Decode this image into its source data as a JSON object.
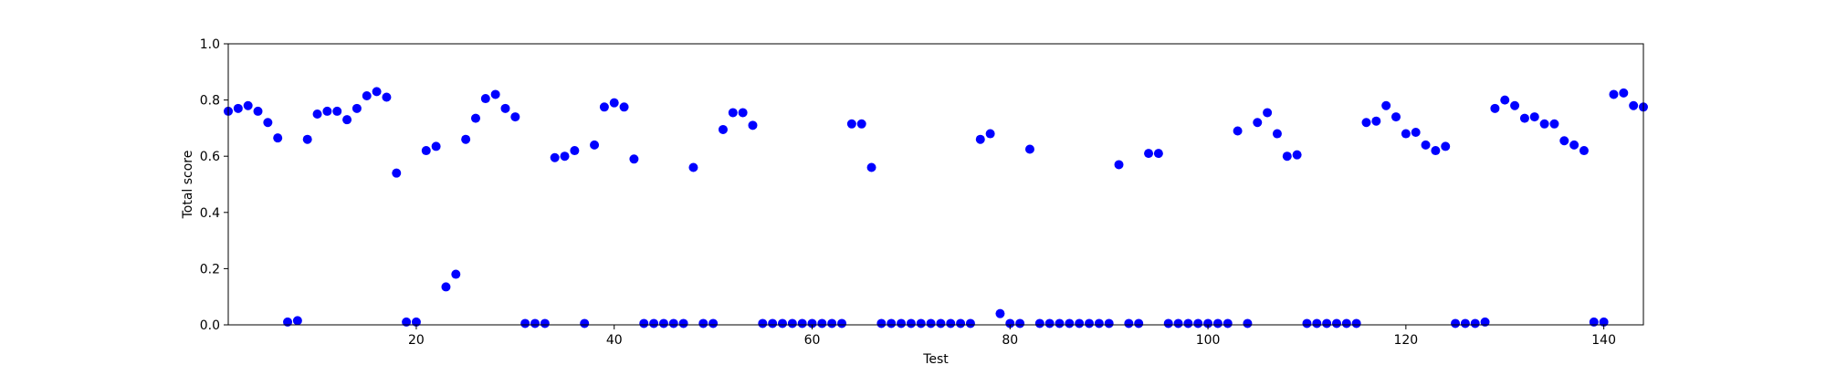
{
  "chart_data": {
    "type": "scatter",
    "title": "",
    "xlabel": "Test",
    "ylabel": "Total score",
    "xlim": [
      1,
      144
    ],
    "ylim": [
      0.0,
      1.0
    ],
    "xticks": [
      20,
      40,
      60,
      80,
      100,
      120,
      140
    ],
    "yticks": [
      0.0,
      0.2,
      0.4,
      0.6,
      0.8,
      1.0
    ],
    "ytick_labels": [
      "0.0",
      "0.2",
      "0.4",
      "0.6",
      "0.8",
      "1.0"
    ],
    "grid": false,
    "legend": "none",
    "marker_color": "#0000ff",
    "series": [
      {
        "x": [
          1,
          2,
          3,
          4,
          5,
          6,
          7,
          8,
          9,
          10,
          11,
          12,
          13,
          14,
          15,
          16,
          17,
          18,
          19,
          20,
          21,
          22,
          23,
          24,
          25,
          26,
          27,
          28,
          29,
          30,
          31,
          32,
          33,
          34,
          35,
          36,
          37,
          38,
          39,
          40,
          41,
          42,
          43,
          44,
          45,
          46,
          47,
          48,
          49,
          50,
          51,
          52,
          53,
          54,
          55,
          56,
          57,
          58,
          59,
          60,
          61,
          62,
          63,
          64,
          65,
          66,
          67,
          68,
          69,
          70,
          71,
          72,
          73,
          74,
          75,
          76,
          77,
          78,
          79,
          80,
          81,
          82,
          83,
          84,
          85,
          86,
          87,
          88,
          89,
          90,
          91,
          92,
          93,
          94,
          95,
          96,
          97,
          98,
          99,
          100,
          101,
          102,
          103,
          104,
          105,
          106,
          107,
          108,
          109,
          110,
          111,
          112,
          113,
          114,
          115,
          116,
          117,
          118,
          119,
          120,
          121,
          122,
          123,
          124,
          125,
          126,
          127,
          128,
          129,
          130,
          131,
          132,
          133,
          134,
          135,
          136,
          137,
          138,
          139,
          140,
          141,
          142,
          143,
          144
        ],
        "y": [
          0.76,
          0.77,
          0.78,
          0.76,
          0.72,
          0.665,
          0.01,
          0.015,
          0.66,
          0.75,
          0.76,
          0.76,
          0.73,
          0.77,
          0.815,
          0.83,
          0.81,
          0.54,
          0.01,
          0.01,
          0.62,
          0.635,
          0.135,
          0.18,
          0.66,
          0.735,
          0.805,
          0.82,
          0.77,
          0.74,
          0.005,
          0.005,
          0.005,
          0.595,
          0.6,
          0.62,
          0.005,
          0.64,
          0.775,
          0.79,
          0.775,
          0.59,
          0.005,
          0.005,
          0.005,
          0.005,
          0.005,
          0.56,
          0.005,
          0.005,
          0.695,
          0.755,
          0.755,
          0.71,
          0.005,
          0.005,
          0.005,
          0.005,
          0.005,
          0.005,
          0.005,
          0.005,
          0.005,
          0.715,
          0.715,
          0.56,
          0.005,
          0.005,
          0.005,
          0.005,
          0.005,
          0.005,
          0.005,
          0.005,
          0.005,
          0.005,
          0.66,
          0.68,
          0.04,
          0.005,
          0.005,
          0.625,
          0.005,
          0.005,
          0.005,
          0.005,
          0.005,
          0.005,
          0.005,
          0.005,
          0.57,
          0.005,
          0.005,
          0.61,
          0.61,
          0.005,
          0.005,
          0.005,
          0.005,
          0.005,
          0.005,
          0.005,
          0.69,
          0.005,
          0.72,
          0.755,
          0.68,
          0.6,
          0.605,
          0.005,
          0.005,
          0.005,
          0.005,
          0.005,
          0.005,
          0.72,
          0.725,
          0.78,
          0.74,
          0.68,
          0.685,
          0.64,
          0.62,
          0.635,
          0.005,
          0.005,
          0.005,
          0.01,
          0.77,
          0.8,
          0.78,
          0.735,
          0.74,
          0.715,
          0.715,
          0.655,
          0.64,
          0.62,
          0.01,
          0.01,
          0.82,
          0.825,
          0.78,
          0.775
        ]
      }
    ]
  }
}
